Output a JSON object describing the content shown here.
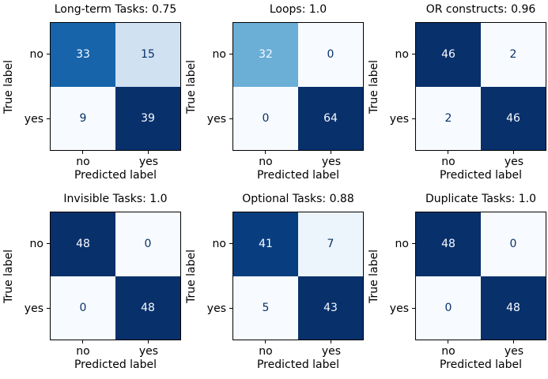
{
  "figure_colors": {
    "background": "#ffffff",
    "spine": "#000000",
    "colormap_max": "#08306b",
    "colormap_min": "#f7fbff"
  },
  "chart_data": [
    {
      "type": "heatmap",
      "title": "Long-term Tasks: 0.75",
      "xlabel": "Predicted label",
      "ylabel": "True label",
      "x_categories": [
        "no",
        "yes"
      ],
      "y_categories": [
        "no",
        "yes"
      ],
      "matrix": [
        [
          33,
          15
        ],
        [
          9,
          39
        ]
      ],
      "colormap": "Blues",
      "legend": "none"
    },
    {
      "type": "heatmap",
      "title": "Loops: 1.0",
      "xlabel": "Predicted label",
      "ylabel": "True label",
      "x_categories": [
        "no",
        "yes"
      ],
      "y_categories": [
        "no",
        "yes"
      ],
      "matrix": [
        [
          32,
          0
        ],
        [
          0,
          64
        ]
      ],
      "colormap": "Blues",
      "legend": "none"
    },
    {
      "type": "heatmap",
      "title": "OR constructs: 0.96",
      "xlabel": "Predicted label",
      "ylabel": "True label",
      "x_categories": [
        "no",
        "yes"
      ],
      "y_categories": [
        "no",
        "yes"
      ],
      "matrix": [
        [
          46,
          2
        ],
        [
          2,
          46
        ]
      ],
      "colormap": "Blues",
      "legend": "none"
    },
    {
      "type": "heatmap",
      "title": "Invisible Tasks: 1.0",
      "xlabel": "Predicted label",
      "ylabel": "True label",
      "x_categories": [
        "no",
        "yes"
      ],
      "y_categories": [
        "no",
        "yes"
      ],
      "matrix": [
        [
          48,
          0
        ],
        [
          0,
          48
        ]
      ],
      "colormap": "Blues",
      "legend": "none"
    },
    {
      "type": "heatmap",
      "title": "Optional Tasks: 0.88",
      "xlabel": "Predicted label",
      "ylabel": "True label",
      "x_categories": [
        "no",
        "yes"
      ],
      "y_categories": [
        "no",
        "yes"
      ],
      "matrix": [
        [
          41,
          7
        ],
        [
          5,
          43
        ]
      ],
      "colormap": "Blues",
      "legend": "none"
    },
    {
      "type": "heatmap",
      "title": "Duplicate Tasks: 1.0",
      "xlabel": "Predicted label",
      "ylabel": "True label",
      "x_categories": [
        "no",
        "yes"
      ],
      "y_categories": [
        "no",
        "yes"
      ],
      "matrix": [
        [
          48,
          0
        ],
        [
          0,
          48
        ]
      ],
      "colormap": "Blues",
      "legend": "none"
    }
  ],
  "panels": [
    {
      "title": "Long-term Tasks: 0.75",
      "xlabel": "Predicted label",
      "ylabel": "True label",
      "xticklabels": [
        "no",
        "yes"
      ],
      "yticklabels": [
        "no",
        "yes"
      ],
      "cells": [
        {
          "value": "33",
          "bg": "#1764ab",
          "fg": "#f7fbff"
        },
        {
          "value": "15",
          "bg": "#d0e1f2",
          "fg": "#08306b"
        },
        {
          "value": "9",
          "bg": "#f7fbff",
          "fg": "#08306b"
        },
        {
          "value": "39",
          "bg": "#08306b",
          "fg": "#f7fbff"
        }
      ]
    },
    {
      "title": "Loops: 1.0",
      "xlabel": "Predicted label",
      "ylabel": "True label",
      "xticklabels": [
        "no",
        "yes"
      ],
      "yticklabels": [
        "no",
        "yes"
      ],
      "cells": [
        {
          "value": "32",
          "bg": "#6baed6",
          "fg": "#f7fbff"
        },
        {
          "value": "0",
          "bg": "#f7fbff",
          "fg": "#08306b"
        },
        {
          "value": "0",
          "bg": "#f7fbff",
          "fg": "#08306b"
        },
        {
          "value": "64",
          "bg": "#08306b",
          "fg": "#f7fbff"
        }
      ]
    },
    {
      "title": "OR constructs: 0.96",
      "xlabel": "Predicted label",
      "ylabel": "True label",
      "xticklabels": [
        "no",
        "yes"
      ],
      "yticklabels": [
        "no",
        "yes"
      ],
      "cells": [
        {
          "value": "46",
          "bg": "#08306b",
          "fg": "#f7fbff"
        },
        {
          "value": "2",
          "bg": "#f7fbff",
          "fg": "#08306b"
        },
        {
          "value": "2",
          "bg": "#f7fbff",
          "fg": "#08306b"
        },
        {
          "value": "46",
          "bg": "#08306b",
          "fg": "#f7fbff"
        }
      ]
    },
    {
      "title": "Invisible Tasks: 1.0",
      "xlabel": "Predicted label",
      "ylabel": "True label",
      "xticklabels": [
        "no",
        "yes"
      ],
      "yticklabels": [
        "no",
        "yes"
      ],
      "cells": [
        {
          "value": "48",
          "bg": "#08306b",
          "fg": "#f7fbff"
        },
        {
          "value": "0",
          "bg": "#f7fbff",
          "fg": "#08306b"
        },
        {
          "value": "0",
          "bg": "#f7fbff",
          "fg": "#08306b"
        },
        {
          "value": "48",
          "bg": "#08306b",
          "fg": "#f7fbff"
        }
      ]
    },
    {
      "title": "Optional Tasks: 0.88",
      "xlabel": "Predicted label",
      "ylabel": "True label",
      "xticklabels": [
        "no",
        "yes"
      ],
      "yticklabels": [
        "no",
        "yes"
      ],
      "cells": [
        {
          "value": "41",
          "bg": "#083e80",
          "fg": "#f7fbff"
        },
        {
          "value": "7",
          "bg": "#ecf4fc",
          "fg": "#08306b"
        },
        {
          "value": "5",
          "bg": "#f7fbff",
          "fg": "#08306b"
        },
        {
          "value": "43",
          "bg": "#08306b",
          "fg": "#f7fbff"
        }
      ]
    },
    {
      "title": "Duplicate Tasks: 1.0",
      "xlabel": "Predicted label",
      "ylabel": "True label",
      "xticklabels": [
        "no",
        "yes"
      ],
      "yticklabels": [
        "no",
        "yes"
      ],
      "cells": [
        {
          "value": "48",
          "bg": "#08306b",
          "fg": "#f7fbff"
        },
        {
          "value": "0",
          "bg": "#f7fbff",
          "fg": "#08306b"
        },
        {
          "value": "0",
          "bg": "#f7fbff",
          "fg": "#08306b"
        },
        {
          "value": "48",
          "bg": "#08306b",
          "fg": "#f7fbff"
        }
      ]
    }
  ]
}
